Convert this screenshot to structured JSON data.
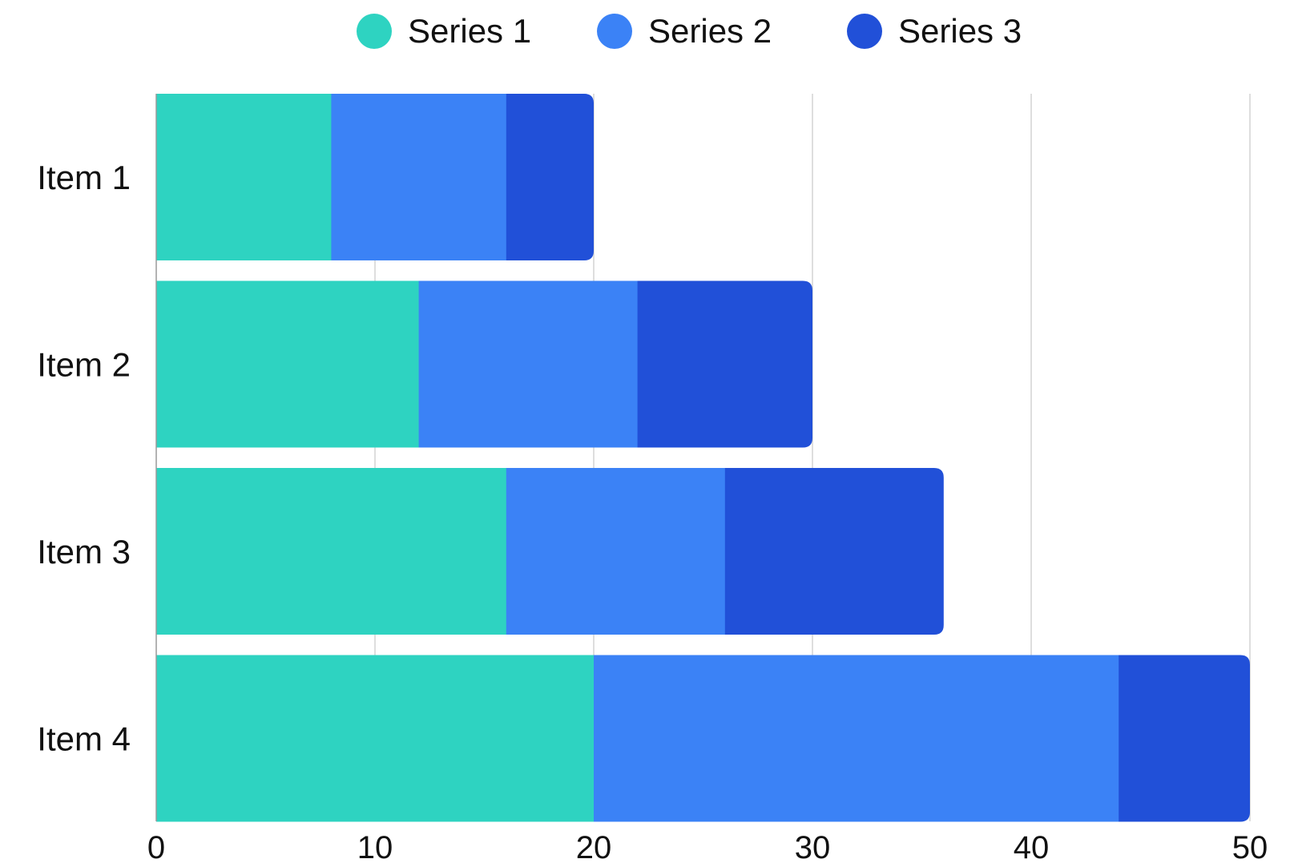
{
  "chart_data": {
    "type": "bar",
    "orientation": "horizontal",
    "stacked": true,
    "categories": [
      "Item 1",
      "Item 2",
      "Item 3",
      "Item 4"
    ],
    "series": [
      {
        "name": "Series 1",
        "color": "#2ed3c1",
        "values": [
          8,
          12,
          16,
          20
        ]
      },
      {
        "name": "Series 2",
        "color": "#3b82f6",
        "values": [
          8,
          10,
          10,
          24
        ]
      },
      {
        "name": "Series 3",
        "color": "#2150d8",
        "values": [
          4,
          8,
          10,
          6
        ]
      }
    ],
    "xlim": [
      0,
      50
    ],
    "xticks": [
      "0",
      "10",
      "20",
      "30",
      "40",
      "50"
    ],
    "title": "",
    "xlabel": "",
    "ylabel": "",
    "grid": "vertical",
    "legend_position": "top-center"
  }
}
